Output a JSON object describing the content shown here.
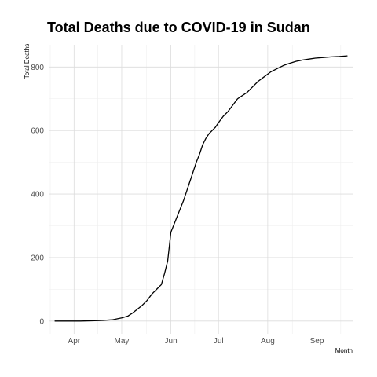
{
  "chart_data": {
    "type": "line",
    "title": "Total Deaths due to COVID-19 in Sudan",
    "xlabel": "Month",
    "ylabel": "Total Deaths",
    "x_tick_labels": [
      "Apr",
      "May",
      "Jun",
      "Jul",
      "Aug",
      "Sep"
    ],
    "x_tick_dates": [
      "2020-04-01",
      "2020-05-01",
      "2020-06-01",
      "2020-07-01",
      "2020-08-01",
      "2020-09-01"
    ],
    "xlim": [
      "2020-03-16",
      "2020-09-24"
    ],
    "y_ticks": [
      0,
      200,
      400,
      600,
      800
    ],
    "ylim": [
      -40,
      870
    ],
    "grid": true,
    "legend": "none",
    "line_color": "#000000",
    "series": [
      {
        "x": [
          "2020-03-20",
          "2020-03-28",
          "2020-04-05",
          "2020-04-12",
          "2020-04-19",
          "2020-04-25",
          "2020-05-01",
          "2020-05-05",
          "2020-05-08",
          "2020-05-11",
          "2020-05-14",
          "2020-05-17",
          "2020-05-20",
          "2020-05-23",
          "2020-05-26",
          "2020-05-28",
          "2020-05-30",
          "2020-06-01",
          "2020-06-03",
          "2020-06-05",
          "2020-06-07",
          "2020-06-09",
          "2020-06-11",
          "2020-06-13",
          "2020-06-15",
          "2020-06-17",
          "2020-06-19",
          "2020-06-21",
          "2020-06-23",
          "2020-06-25",
          "2020-06-27",
          "2020-06-29",
          "2020-07-01",
          "2020-07-04",
          "2020-07-07",
          "2020-07-10",
          "2020-07-13",
          "2020-07-16",
          "2020-07-19",
          "2020-07-22",
          "2020-07-26",
          "2020-07-30",
          "2020-08-03",
          "2020-08-07",
          "2020-08-11",
          "2020-08-15",
          "2020-08-19",
          "2020-08-23",
          "2020-08-27",
          "2020-08-31",
          "2020-09-05",
          "2020-09-10",
          "2020-09-15",
          "2020-09-20"
        ],
        "y": [
          0,
          0,
          0,
          1,
          2,
          4,
          10,
          16,
          26,
          38,
          50,
          65,
          85,
          100,
          115,
          150,
          190,
          280,
          305,
          330,
          355,
          380,
          410,
          440,
          470,
          500,
          525,
          555,
          575,
          590,
          600,
          610,
          625,
          645,
          660,
          680,
          700,
          710,
          720,
          735,
          755,
          770,
          785,
          795,
          805,
          812,
          818,
          822,
          825,
          828,
          830,
          832,
          833,
          835
        ]
      }
    ]
  }
}
